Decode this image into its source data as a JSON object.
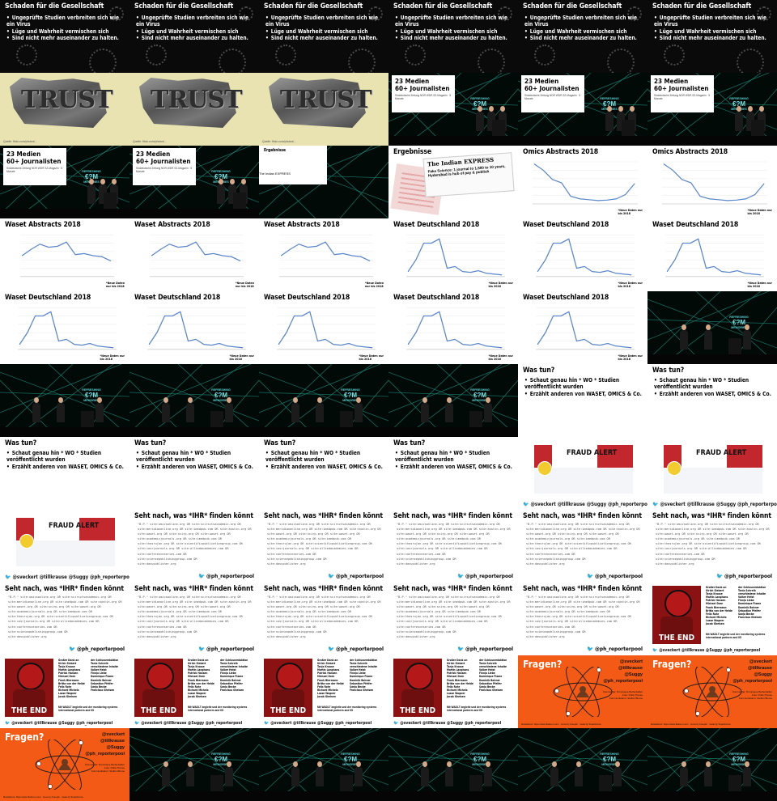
{
  "virus_slide": {
    "title": "Schaden für die Gesellschaft",
    "bullets": [
      "Ungeprüfte Studien verbreiten sich wie ein Virus",
      "Lüge und Wahrheit vermischen sich",
      "Sind nicht mehr auseinander zu halten."
    ]
  },
  "trust_slide": {
    "word": "TRUST",
    "credit": "Quelle: flickr.com/photos/..."
  },
  "medien_slide": {
    "line1": "23 Medien",
    "line2": "60+ Journalisten",
    "caption": "Süddeutsche Zeitung NDR WDR SZ-Magazin · 5 Monate"
  },
  "stage": {
    "logo_top": "REFRESHING",
    "logo_main": "€?M",
    "logo_bottom": "MEMORIES"
  },
  "results_slide": {
    "title": "Ergebnisse",
    "paper_header": "The Indian EXPRESS",
    "paper_text": "Fake Science: 1 journal to 1,500 to 10 years, Hyderabad is hub of pay & publish"
  },
  "omics_slide": {
    "title": "Omics Abstracts 2018",
    "note": "*Neue Daten nur\nbis 2018"
  },
  "waset_abstracts_slide": {
    "title": "Waset Abstracts 2018",
    "note": "*Neue Daten\nnur bis 2018"
  },
  "waset_de_slide": {
    "title": "Waset Deutschland 2018",
    "note": "*Neue Daten nur\nbis 2018"
  },
  "was_tun_slide": {
    "title": "Was tun?",
    "bullets": [
      "Schaut genau hin * WO * Studien veröffentlicht wurden",
      "Erzählt anderen von WASET, OMICS & Co."
    ]
  },
  "twitter_handles": "@sveckert   @tillkrause   @Suggy   @ph_reporterpool",
  "fraud_slide": {
    "banner": "FRAUD ALERT"
  },
  "seht_slide": {
    "title": "Seht nach, was *IHR* finden könnt",
    "code": [
      "\"B.P.\" site:omicsonline.org OR site:scirsctsacademic.org OR",
      "site:meridianonline.org OR site:imedpub.com OR site:austin.org OR",
      "site:waset.org OR site:scirp.org OR site:waset.org OR",
      "site:academicjournals.org OR site:imedpub.com OR",
      "site:thesrujan.org OR site:scientificpublicationgroup.com OR",
      "site:iosrjournals.org OR site:alliedacademies.com OR",
      "site:conferenceseries.com OR",
      "site:sciencepublishinggroup.com OR",
      "site:davupublisher.org"
    ],
    "handle": "@ph_reporterpool"
  },
  "end_slide": {
    "end_text": "THE END",
    "credits_head": "Großer Dank an",
    "credits_col1": "Ulrich Siebert\nTanja Krause\nMartin Langhans\nPatrick Hansen\nMichael Dorn\nFrank Biermann\nBritta von der Heide\nFelix Rohr\nRichard Michels\nLasse Wagner\nJacob Gheisen",
    "credits_col2": "der Schlussredaktion\nTania Schreib\nverschiedene Inhalte\nVolker Heist\nFinnja Liebe\nDominique Flame\nDominik Bohner\nSebastian Pfeifer\nSonja Becke\nFrancisca Gheisen",
    "note": "Mit WADLT begleite und der monitoring systems international partners and IIS"
  },
  "fragen_slide": {
    "title": "Fragen?",
    "handles": [
      "@sveckert",
      "@tillkrause",
      "@Suggy",
      "@ph_reporterpool"
    ],
    "small": "Kommentar: Dominique Benkebalker\nFoto: Dritte Presse\nKommunikation: Steffen Blume",
    "bottom": "Illustrations: https://www.flaticon.com/ · Icons by Freepik · made by Smashicons"
  },
  "chart_data": [
    {
      "type": "line",
      "name": "omics",
      "title": "Omics Abstracts 2018",
      "values": [
        95,
        80,
        58,
        50,
        18,
        12,
        10,
        8,
        9,
        12,
        22,
        48
      ],
      "ylim": [
        0,
        100
      ]
    },
    {
      "type": "line",
      "name": "waset_abstracts",
      "title": "Waset Abstracts 2018",
      "values": [
        40,
        52,
        62,
        56,
        58,
        66,
        42,
        44,
        40,
        38,
        30
      ],
      "ylim": [
        0,
        80
      ]
    },
    {
      "type": "line",
      "name": "waset_de",
      "title": "Waset Deutschland 2018",
      "values": [
        6,
        20,
        40,
        40,
        45,
        10,
        12,
        6,
        5,
        7,
        4,
        3,
        2
      ],
      "ylim": [
        0,
        50
      ]
    }
  ]
}
